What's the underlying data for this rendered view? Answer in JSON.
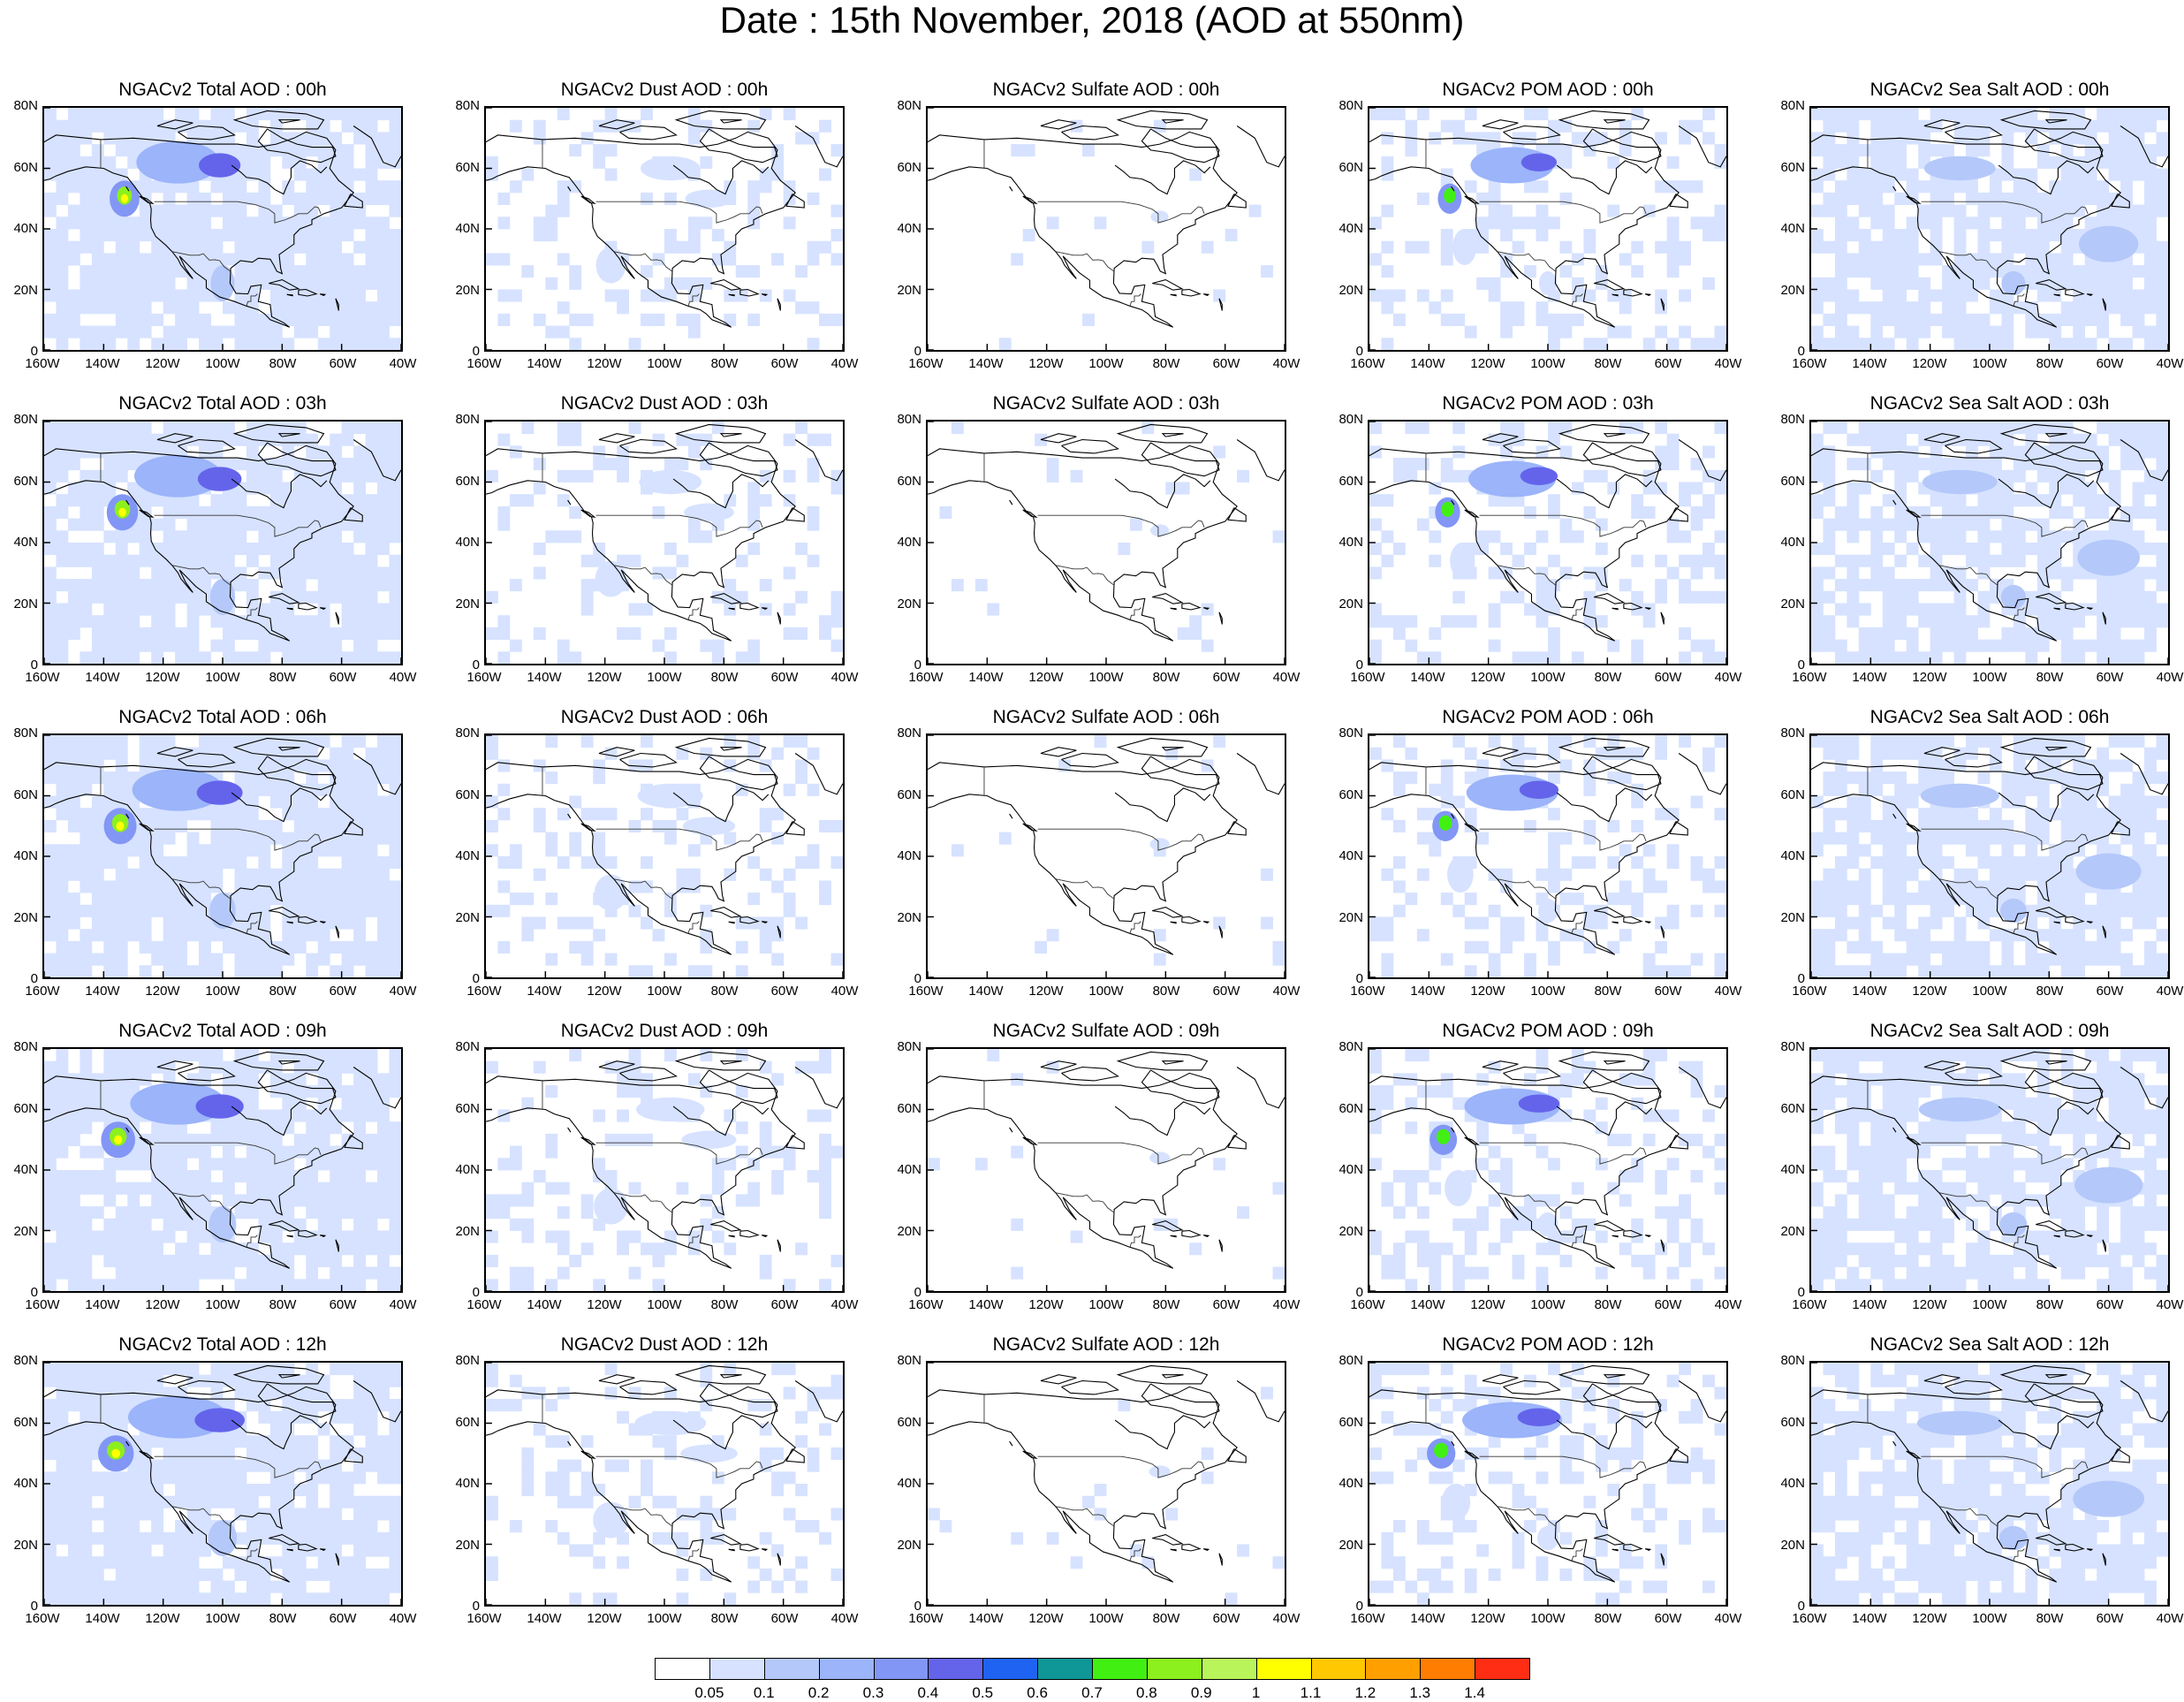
{
  "title": "Date : 15th November, 2018 (AOD at 550nm)",
  "species_titles": [
    [
      "NGACv2 Total AOD : 00h",
      "NGACv2 Dust AOD : 00h",
      "NGACv2 Sulfate AOD : 00h",
      "NGACv2 POM AOD : 00h",
      "NGACv2 Sea Salt AOD : 00h"
    ],
    [
      "NGACv2 Total AOD : 03h",
      "NGACv2 Dust AOD : 03h",
      "NGACv2 Sulfate AOD : 03h",
      "NGACv2 POM AOD : 03h",
      "NGACv2 Sea Salt AOD : 03h"
    ],
    [
      "NGACv2 Total AOD : 06h",
      "NGACv2 Dust AOD : 06h",
      "NGACv2 Sulfate AOD : 06h",
      "NGACv2 POM AOD : 06h",
      "NGACv2 Sea Salt AOD : 06h"
    ],
    [
      "NGACv2 Total AOD : 09h",
      "NGACv2 Dust AOD : 09h",
      "NGACv2 Sulfate AOD : 09h",
      "NGACv2 POM AOD : 09h",
      "NGACv2 Sea Salt  AOD : 09h"
    ],
    [
      "NGACv2 Total AOD  : 12h",
      "NGACv2 Dust AOD : 12h",
      "NGACv2 Sulfate AOD : 12h",
      "NGACv2 POM  AOD : 12h",
      "NGACv2 Sea Salt  AOD : 12h"
    ]
  ],
  "lat_labels": [
    "80N",
    "60N",
    "40N",
    "20N",
    "0"
  ],
  "lon_labels": [
    "160W",
    "140W",
    "120W",
    "100W",
    "80W",
    "60W",
    "40W"
  ],
  "colorbar": {
    "colors": [
      "#ffffff",
      "#d6e2ff",
      "#b4c8fa",
      "#9bb4fa",
      "#8296f5",
      "#6464eb",
      "#1f63f2",
      "#0f9696",
      "#41f012",
      "#8cf01e",
      "#b9f55a",
      "#ffff00",
      "#ffc800",
      "#ffa000",
      "#ff7d00",
      "#ff2d14"
    ],
    "labels": [
      "0.05",
      "0.1",
      "0.2",
      "0.3",
      "0.4",
      "0.5",
      "0.6",
      "0.7",
      "0.8",
      "0.9",
      "1",
      "1.1",
      "1.2",
      "1.3",
      "1.4"
    ]
  },
  "plumes": {
    "total": [
      {
        "lon": -115,
        "lat": 62,
        "rx": 14,
        "ry": 7,
        "level": 3
      },
      {
        "lon": -101,
        "lat": 61,
        "rx": 7,
        "ry": 4,
        "level": 5
      },
      {
        "lon": -133,
        "lat": 50,
        "rx": 5,
        "ry": 6,
        "level": 4
      },
      {
        "lon": -133,
        "lat": 51,
        "rx": 2.5,
        "ry": 3,
        "level": 9
      },
      {
        "lon": -133,
        "lat": 50,
        "rx": 1.2,
        "ry": 1.5,
        "level": 11
      },
      {
        "lon": -100,
        "lat": 22,
        "rx": 4,
        "ry": 6,
        "level": 2
      }
    ],
    "dust": [
      {
        "lon": -98,
        "lat": 60,
        "rx": 10,
        "ry": 4,
        "level": 1
      },
      {
        "lon": -85,
        "lat": 50,
        "rx": 8,
        "ry": 3,
        "level": 1
      },
      {
        "lon": -118,
        "lat": 28,
        "rx": 5,
        "ry": 6,
        "level": 1
      }
    ],
    "sulfate": [
      {
        "lon": -82,
        "lat": 44,
        "rx": 3,
        "ry": 2,
        "level": 1
      }
    ],
    "pom": [
      {
        "lon": -112,
        "lat": 61,
        "rx": 14,
        "ry": 6,
        "level": 3
      },
      {
        "lon": -103,
        "lat": 62,
        "rx": 6,
        "ry": 3,
        "level": 5
      },
      {
        "lon": -133,
        "lat": 50,
        "rx": 4,
        "ry": 5,
        "level": 4
      },
      {
        "lon": -133,
        "lat": 51,
        "rx": 2,
        "ry": 2.5,
        "level": 8
      },
      {
        "lon": -128,
        "lat": 34,
        "rx": 4,
        "ry": 6,
        "level": 1
      },
      {
        "lon": -100,
        "lat": 22,
        "rx": 3,
        "ry": 4,
        "level": 1
      }
    ],
    "seasalt": [
      {
        "lon": -110,
        "lat": 60,
        "rx": 12,
        "ry": 4,
        "level": 2
      },
      {
        "lon": -92,
        "lat": 22,
        "rx": 4,
        "ry": 4,
        "level": 2
      },
      {
        "lon": -60,
        "lat": 35,
        "rx": 10,
        "ry": 6,
        "level": 2
      }
    ]
  },
  "background_fields": {
    "total": {
      "cover": 0.85,
      "level": 1
    },
    "dust": {
      "cover": 0.22,
      "level": 1
    },
    "sulfate": {
      "cover": 0.03,
      "level": 1
    },
    "pom": {
      "cover": 0.3,
      "level": 1
    },
    "seasalt": {
      "cover": 0.75,
      "level": 1
    }
  }
}
